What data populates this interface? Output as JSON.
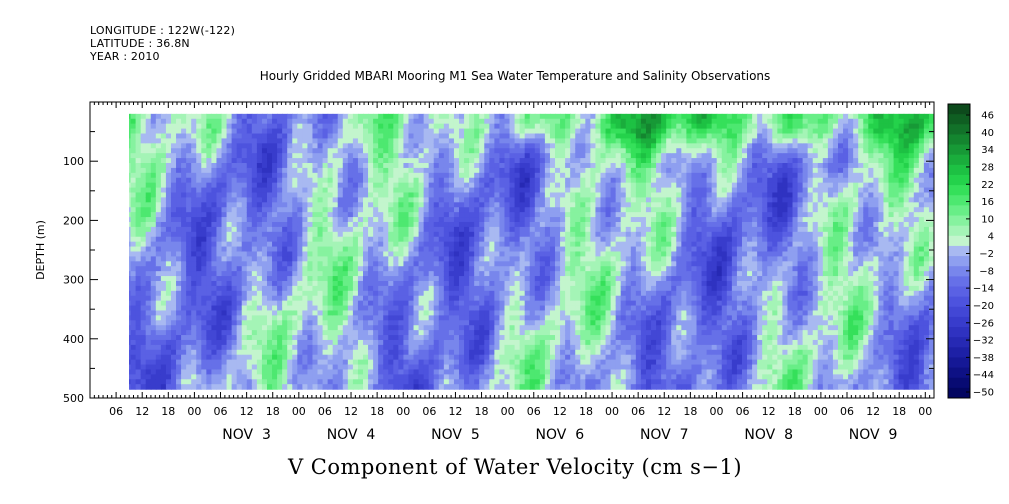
{
  "header": {
    "longitude": "LONGITUDE : 122W(-122)",
    "latitude": "LATITUDE : 36.8N",
    "year": "YEAR : 2010"
  },
  "title": "Hourly Gridded MBARI Mooring M1 Sea Water Temperature and Salinity Observations",
  "variable_title": "V Component of Water Velocity (cm s−1)",
  "chart_data": {
    "type": "heatmap",
    "title": "Hourly Gridded MBARI Mooring M1 Sea Water Temperature and Salinity Observations",
    "xlabel": "",
    "ylabel": "DEPTH (m)",
    "colorbar_label": "V Component of Water Velocity (cm s−1)",
    "y_axis": {
      "range": [
        500,
        0
      ],
      "ticks": [
        100,
        200,
        300,
        400,
        500
      ],
      "inverted": true
    },
    "x_axis": {
      "start": "2010-11-02 00:00",
      "end": "2010-11-10 02:00",
      "hour_labels": [
        "06",
        "12",
        "18",
        "00",
        "06",
        "12",
        "18",
        "00",
        "06",
        "12",
        "18",
        "00",
        "06",
        "12",
        "18",
        "00",
        "06",
        "12",
        "18",
        "00",
        "06",
        "12",
        "18",
        "00",
        "06",
        "12",
        "18",
        "00",
        "06",
        "12",
        "18",
        "00"
      ],
      "day_labels": [
        "NOV 3",
        "NOV 4",
        "NOV 5",
        "NOV 6",
        "NOV 7",
        "NOV 8",
        "NOV 9"
      ]
    },
    "data_extent": {
      "time_start": "2010-11-02 07:00",
      "time_end": "2010-11-10 02:00",
      "depth_top": 20,
      "depth_bottom": 485
    },
    "colorbar": {
      "levels": [
        -50,
        -44,
        -38,
        -32,
        -26,
        -20,
        -14,
        -8,
        -2,
        4,
        10,
        16,
        22,
        28,
        34,
        40,
        46
      ],
      "labels": [
        "46",
        "40",
        "34",
        "28",
        "22",
        "16",
        "10",
        "4",
        "-2",
        "-8",
        "-14",
        "-20",
        "-26",
        "-32",
        "-38",
        "-44",
        "-50"
      ],
      "colors_high_to_low": [
        "#0d4a1c",
        "#0f5e22",
        "#127129",
        "#14852f",
        "#179936",
        "#1aad3c",
        "#1dc143",
        "#24d24b",
        "#35e05a",
        "#4de870",
        "#68ee87",
        "#86f29f",
        "#a4f4b6",
        "#c3f5cd",
        "#a8b9f1",
        "#8e9ff0",
        "#7886ec",
        "#6670e8",
        "#5a61e4",
        "#4d53de",
        "#4247d5",
        "#383ccc",
        "#2f32c1",
        "#2629b4",
        "#1d20a6",
        "#151896",
        "#0e1185",
        "#080b73",
        "#030661"
      ]
    },
    "fields": {
      "dominant_positive_band": "upper 0-120 m, Nov 5 12h to Nov 10",
      "typical_range": [
        -20,
        30
      ]
    },
    "grid": false,
    "legend_position": "right colorbar"
  }
}
